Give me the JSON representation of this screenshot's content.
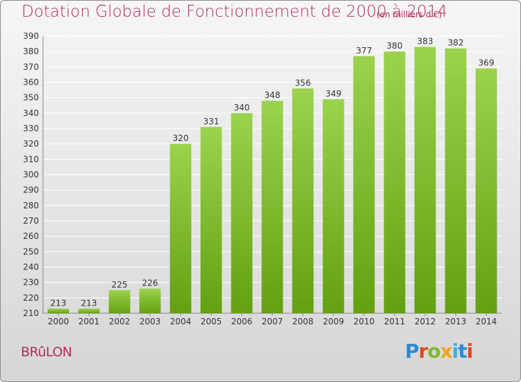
{
  "header": {
    "title": "Dotation Globale de Fonctionnement de 2000 à 2014",
    "subtitle": "(en milliers d'€)"
  },
  "footer": {
    "commune": "BRûLON",
    "logo": "Proxiti"
  },
  "colors": {
    "bar_top": "#9bd34c",
    "bar_bottom": "#63a012",
    "title": "#b22d5c",
    "grid": "#ffffff"
  },
  "chart_data": {
    "type": "bar",
    "categories": [
      "2000",
      "2001",
      "2002",
      "2003",
      "2004",
      "2005",
      "2006",
      "2007",
      "2008",
      "2009",
      "2010",
      "2011",
      "2012",
      "2013",
      "2014"
    ],
    "values": [
      213,
      213,
      225,
      226,
      320,
      331,
      340,
      348,
      356,
      349,
      377,
      380,
      383,
      382,
      369
    ],
    "title": "Dotation Globale de Fonctionnement de 2000 à 2014",
    "ylim": [
      210,
      390
    ],
    "yticks": [
      210,
      220,
      230,
      240,
      250,
      260,
      270,
      280,
      290,
      300,
      310,
      320,
      330,
      340,
      350,
      360,
      370,
      380,
      390
    ],
    "grid": true,
    "data_labels": true
  }
}
